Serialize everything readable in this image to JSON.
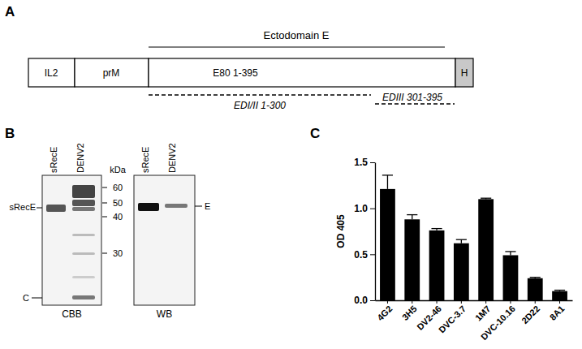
{
  "figure": {
    "panel_labels": [
      "A",
      "B",
      "C"
    ],
    "panel_a": {
      "header": "Ectodomain E",
      "segments": [
        "IL2",
        "prM",
        "E80 1-395",
        "H"
      ],
      "domains": [
        "EDI/II 1-300",
        "EDIII 301-395"
      ]
    },
    "panel_b": {
      "unit": "kDa",
      "markers": [
        60,
        50,
        40,
        30
      ],
      "gels": [
        {
          "lanes": [
            "sRecE",
            "DENV2"
          ],
          "stain": "CBB",
          "side_labels": [
            "sRecE",
            "C"
          ]
        },
        {
          "lanes": [
            "sRecE",
            "DENV2"
          ],
          "stain": "WB",
          "side_labels": [
            "E"
          ]
        }
      ]
    }
  },
  "chart_data": {
    "type": "bar",
    "y_label": "OD 405",
    "categories": [
      "4G2",
      "3H5",
      "DV2-46",
      "DVC-3.7",
      "1M7",
      "DVC-10.16",
      "2D22",
      "8A1"
    ],
    "values": [
      1.21,
      0.88,
      0.76,
      0.62,
      1.1,
      0.49,
      0.24,
      0.1
    ],
    "errors": [
      0.15,
      0.05,
      0.02,
      0.04,
      0.01,
      0.04,
      0.01,
      0.01
    ],
    "color": "#000000",
    "ylim": [
      0,
      1.5
    ],
    "yticks": [
      {
        "value": 0,
        "label": "0.0"
      },
      0.5,
      {
        "value": 1,
        "label": "1.0"
      },
      1.5
    ],
    "grid": false
  }
}
